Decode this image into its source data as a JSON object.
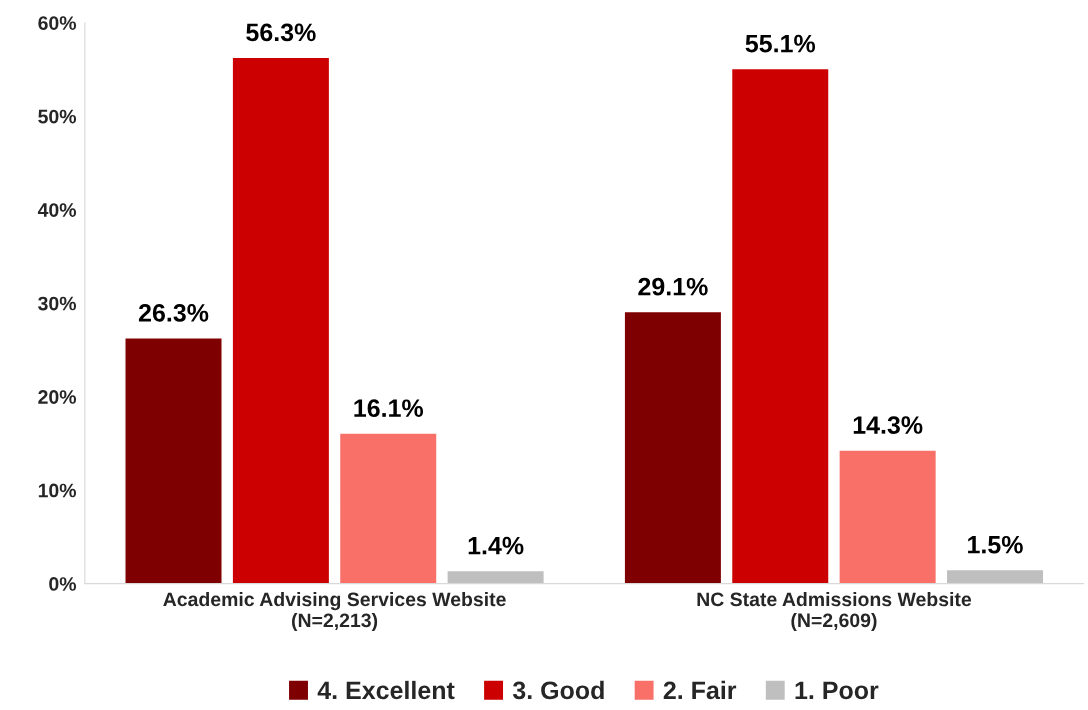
{
  "chart_data": {
    "type": "bar",
    "categories": [
      "Academic Advising Services Website\n(N=2,213)",
      "NC State Admissions Website\n(N=2,609)"
    ],
    "series": [
      {
        "name": "4. Excellent",
        "color": "#7f0000",
        "values": [
          26.3,
          29.1
        ],
        "value_labels": [
          "26.3%",
          "29.1%"
        ]
      },
      {
        "name": "3. Good",
        "color": "#cc0000",
        "values": [
          56.3,
          55.1
        ],
        "value_labels": [
          "56.3%",
          "55.1%"
        ]
      },
      {
        "name": "2. Fair",
        "color": "#f87068",
        "values": [
          16.1,
          14.3
        ],
        "value_labels": [
          "16.1%",
          "14.3%"
        ]
      },
      {
        "name": "1. Poor",
        "color": "#bfbfbf",
        "values": [
          1.4,
          1.5
        ],
        "value_labels": [
          "1.4%",
          "1.5%"
        ]
      }
    ],
    "ylim": [
      0,
      60
    ],
    "yticks": [
      {
        "value": 0,
        "label": "0%"
      },
      {
        "value": 10,
        "label": "10%"
      },
      {
        "value": 20,
        "label": "20%"
      },
      {
        "value": 30,
        "label": "30%"
      },
      {
        "value": 40,
        "label": "40%"
      },
      {
        "value": 50,
        "label": "50%"
      },
      {
        "value": 60,
        "label": "60%"
      }
    ],
    "grid": false,
    "legend": "bottom"
  }
}
